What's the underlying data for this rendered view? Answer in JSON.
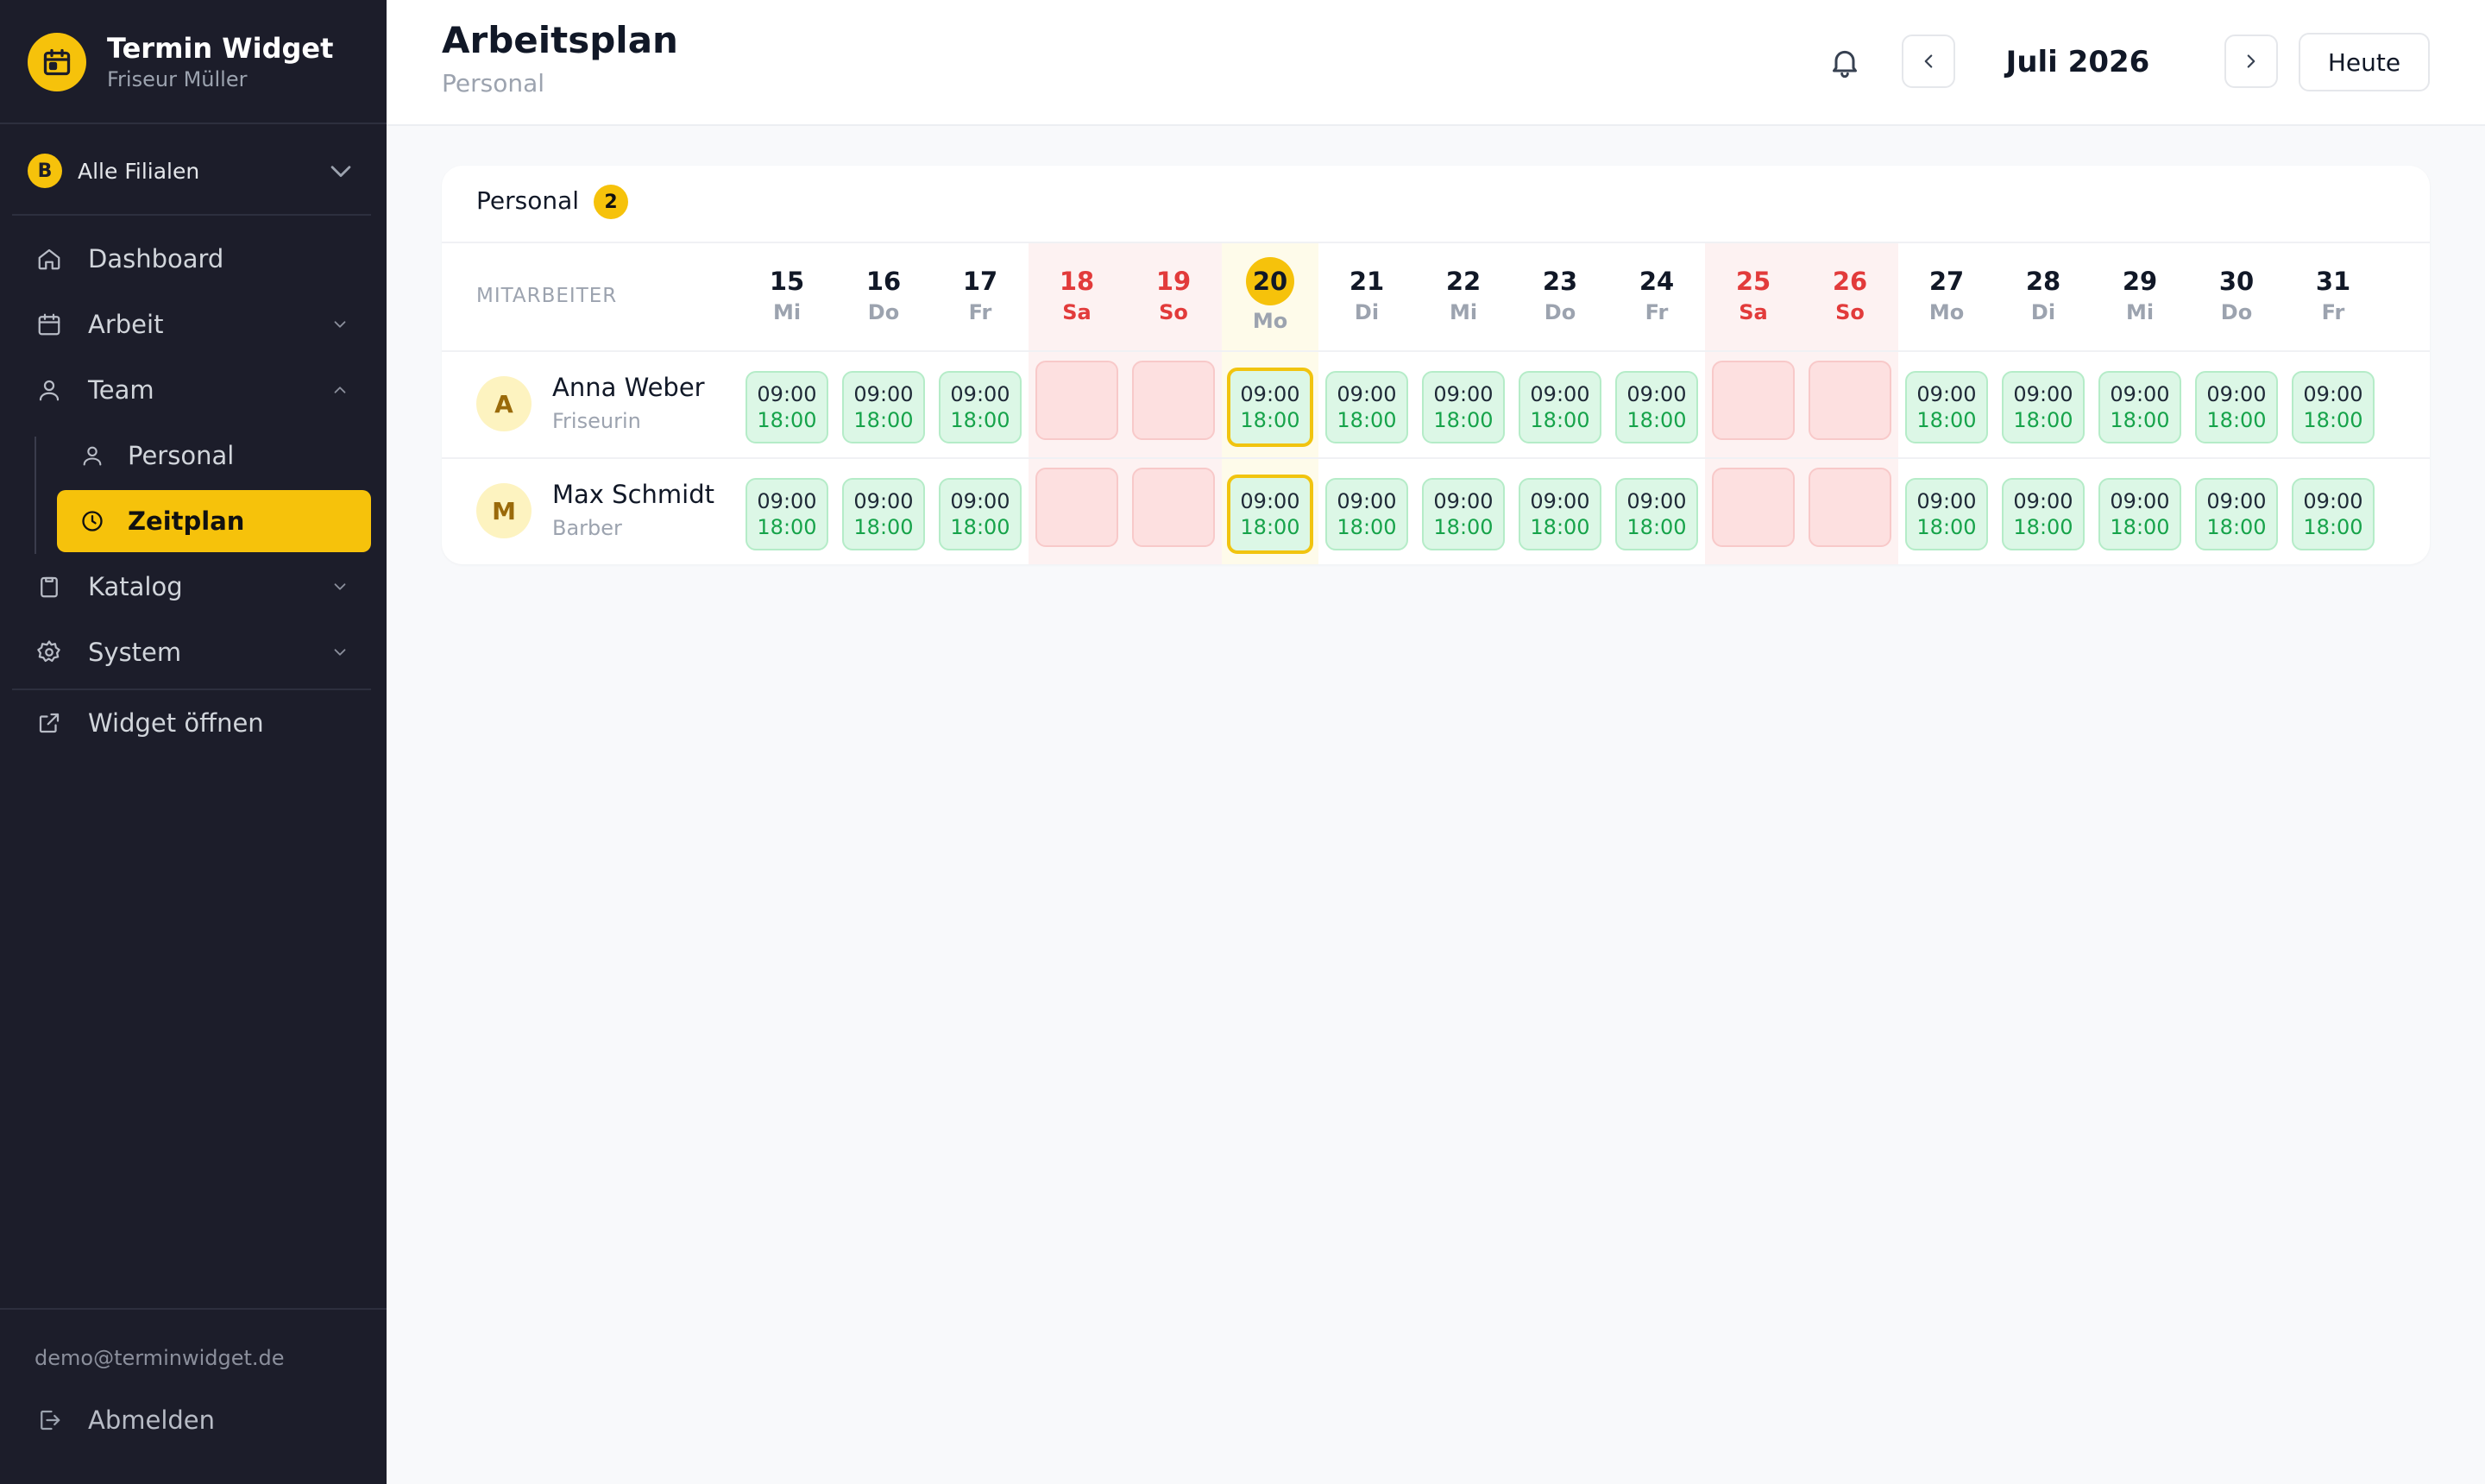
{
  "sidebar": {
    "app_title": "Termin Widget",
    "app_subtitle": "Friseur Müller",
    "branch": {
      "badge": "B",
      "label": "Alle Filialen"
    },
    "nav": {
      "dashboard": "Dashboard",
      "arbeit": "Arbeit",
      "team": "Team",
      "personal": "Personal",
      "zeitplan": "Zeitplan",
      "katalog": "Katalog",
      "system": "System",
      "widget": "Widget öffnen"
    },
    "user_email": "demo@terminwidget.de",
    "logout": "Abmelden"
  },
  "header": {
    "title": "Arbeitsplan",
    "subtitle": "Personal",
    "month": "Juli 2026",
    "today_button": "Heute"
  },
  "schedule": {
    "card_title": "Personal",
    "count": "2",
    "employee_col_label": "MITARBEITER",
    "days": [
      {
        "num": "15",
        "wd": "Mi",
        "type": "work"
      },
      {
        "num": "16",
        "wd": "Do",
        "type": "work"
      },
      {
        "num": "17",
        "wd": "Fr",
        "type": "work"
      },
      {
        "num": "18",
        "wd": "Sa",
        "type": "weekend"
      },
      {
        "num": "19",
        "wd": "So",
        "type": "weekend"
      },
      {
        "num": "20",
        "wd": "Mo",
        "type": "today"
      },
      {
        "num": "21",
        "wd": "Di",
        "type": "work"
      },
      {
        "num": "22",
        "wd": "Mi",
        "type": "work"
      },
      {
        "num": "23",
        "wd": "Do",
        "type": "work"
      },
      {
        "num": "24",
        "wd": "Fr",
        "type": "work"
      },
      {
        "num": "25",
        "wd": "Sa",
        "type": "weekend"
      },
      {
        "num": "26",
        "wd": "So",
        "type": "weekend"
      },
      {
        "num": "27",
        "wd": "Mo",
        "type": "work"
      },
      {
        "num": "28",
        "wd": "Di",
        "type": "work"
      },
      {
        "num": "29",
        "wd": "Mi",
        "type": "work"
      },
      {
        "num": "30",
        "wd": "Do",
        "type": "work"
      },
      {
        "num": "31",
        "wd": "Fr",
        "type": "work"
      }
    ],
    "shift_start": "09:00",
    "shift_end": "18:00",
    "employees": [
      {
        "initial": "A",
        "name": "Anna Weber",
        "role": "Friseurin"
      },
      {
        "initial": "M",
        "name": "Max Schmidt",
        "role": "Barber"
      }
    ]
  },
  "colors": {
    "accent": "#f6c20b",
    "sidebar_bg": "#1c1d2a",
    "weekend_text": "#e23b3b",
    "shift_green": "#16a34a"
  }
}
